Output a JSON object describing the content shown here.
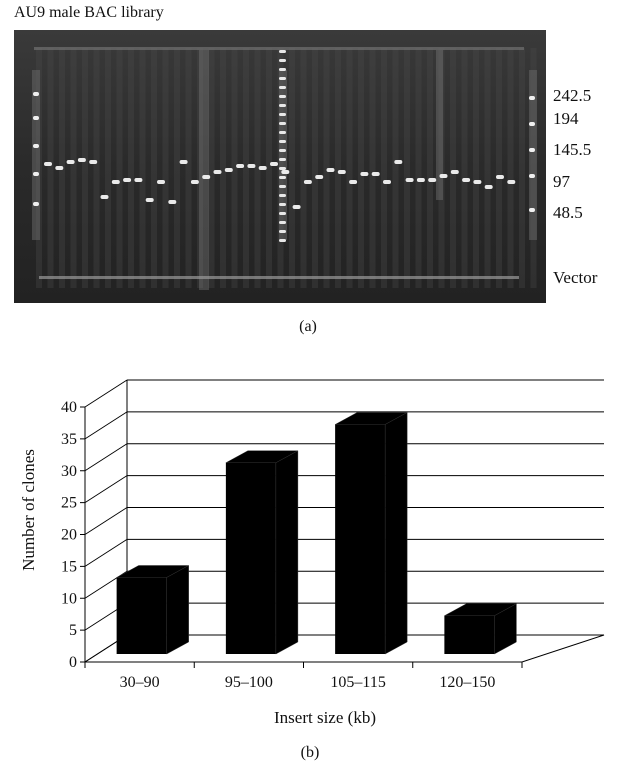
{
  "gel": {
    "title": "AU9 male BAC library",
    "marker_labels": [
      "242.5",
      "194",
      "145.5",
      "97",
      "48.5",
      "Vector"
    ],
    "panel_label": "(a)"
  },
  "chart_panel_label": "(b)",
  "chart_data": {
    "type": "bar",
    "style": "3d",
    "categories": [
      "30–90",
      "95–100",
      "105–115",
      "120–150"
    ],
    "values": [
      12,
      30,
      36,
      6
    ],
    "xlabel": "Insert size (kb)",
    "ylabel": "Number of clones",
    "ylim": [
      0,
      40
    ],
    "yticks": [
      0,
      5,
      10,
      15,
      20,
      25,
      30,
      35,
      40
    ],
    "grid": true,
    "legend": "none",
    "colors": {
      "bar": "#000000",
      "grid": "#000000",
      "background": "#ffffff"
    }
  }
}
